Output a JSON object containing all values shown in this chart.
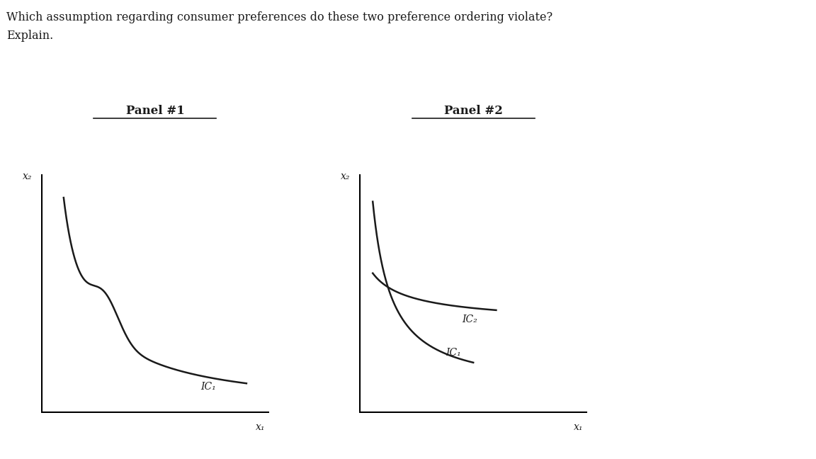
{
  "title_line1": "Which assumption regarding consumer preferences do these two preference ordering violate?",
  "title_line2": "Explain.",
  "panel1_title": "Panel #1",
  "panel2_title": "Panel #2",
  "bg_color": "#ffffff",
  "text_color": "#1a1a1a",
  "line_color": "#1a1a1a",
  "axis_color": "#000000",
  "font_size_title": 11.5,
  "font_size_panel": 12,
  "font_size_label": 10,
  "font_size_axis": 10,
  "x1_label": "x₁",
  "x2_label": "x₂",
  "ic1_label_p1": "IC₁",
  "ic1_label_p2": "IC₁",
  "ic2_label_p2": "IC₂"
}
